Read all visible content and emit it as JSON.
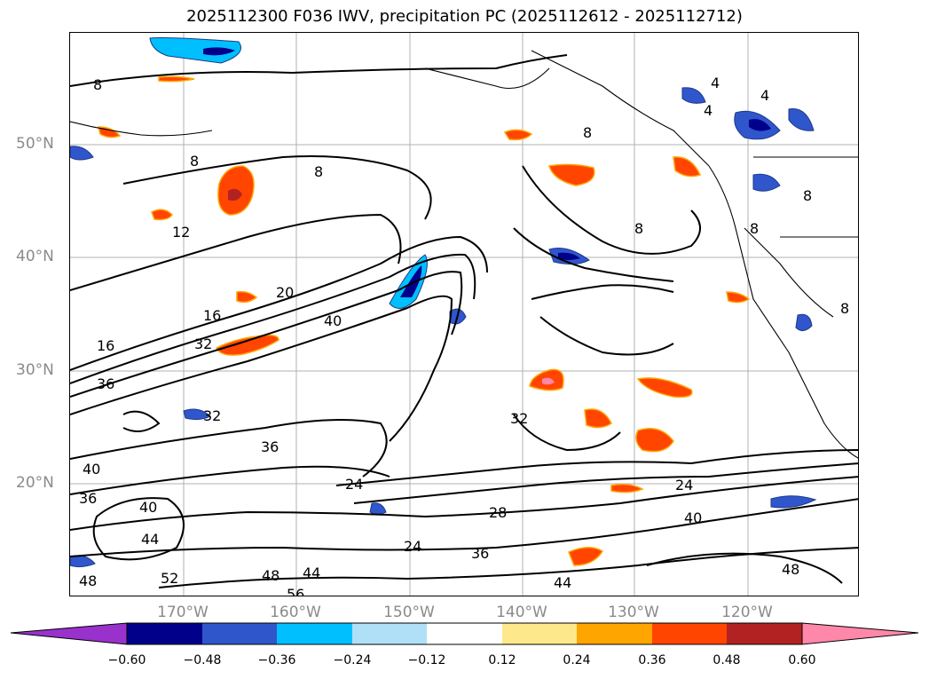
{
  "title": "2025112300 F036 IWV, precipitation PC (2025112612 - 2025112712)",
  "lat_labels": [
    "50°N",
    "40°N",
    "30°N",
    "20°N"
  ],
  "lon_labels": [
    "170°W",
    "160°W",
    "150°W",
    "140°W",
    "130°W",
    "120°W"
  ],
  "contour_labels": [
    "8",
    "8",
    "8",
    "8",
    "8",
    "8",
    "8",
    "8",
    "4",
    "4",
    "4",
    "12",
    "16",
    "16",
    "20",
    "32",
    "32",
    "32",
    "36",
    "36",
    "36",
    "40",
    "40",
    "40",
    "40",
    "24",
    "24",
    "24",
    "28",
    "36",
    "44",
    "44",
    "44",
    "48",
    "48",
    "48",
    "52",
    "56"
  ],
  "colorbar": {
    "ticks": [
      "−0.60",
      "−0.48",
      "−0.36",
      "−0.24",
      "−0.12",
      "0.12",
      "0.24",
      "0.36",
      "0.48",
      "0.60"
    ],
    "colors": {
      "under": "#9932cc",
      "bins": [
        "#00008b",
        "#3056cc",
        "#00bfff",
        "#b0e0f8",
        "#ffffff",
        "#fde98c",
        "#ffa500",
        "#ff4500",
        "#b22222",
        "#ff88aa"
      ],
      "over": "#ff88aa"
    }
  }
}
